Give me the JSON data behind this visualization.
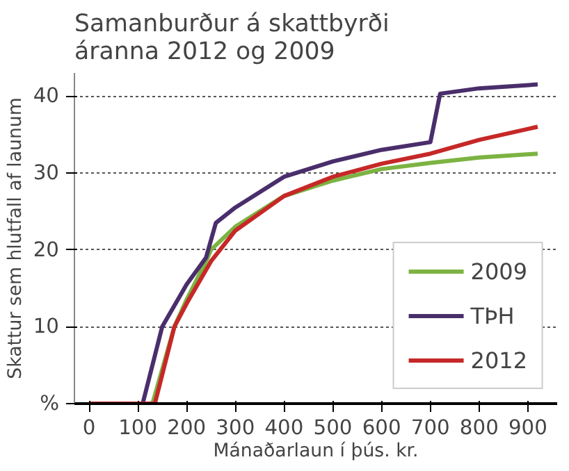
{
  "chart_data": {
    "type": "line",
    "title": "Samanburður á skattbyrði\náranna 2012 og 2009",
    "xlabel": "Mánaðarlaun í þús. kr.",
    "ylabel": "Skattur sem hlutfall af launum",
    "xlim": [
      -30,
      960
    ],
    "ylim": [
      0,
      43
    ],
    "xticks": [
      0,
      100,
      200,
      300,
      400,
      500,
      600,
      700,
      800,
      900
    ],
    "yticks": [
      {
        "value": 0,
        "label": "%"
      },
      10,
      20,
      30,
      40
    ],
    "grid": "y",
    "legend": "bottom right",
    "line_style": "solid",
    "marker": "none",
    "series": [
      {
        "name": "2009",
        "color": "#7cb342",
        "x": [
          0,
          130,
          175,
          200,
          240,
          250,
          300,
          400,
          500,
          600,
          700,
          800,
          920
        ],
        "values": [
          0,
          0,
          10,
          13.5,
          18.5,
          20,
          23,
          27,
          29,
          30.5,
          31.3,
          32,
          32.5
        ]
      },
      {
        "name": "TÞH",
        "color": "#4a2e6b",
        "x": [
          0,
          110,
          150,
          200,
          240,
          260,
          300,
          400,
          500,
          600,
          700,
          720,
          800,
          920
        ],
        "values": [
          0,
          0,
          10,
          15.5,
          19,
          23.5,
          25.5,
          29.5,
          31.5,
          33,
          34,
          40.3,
          41,
          41.5
        ]
      },
      {
        "name": "2012",
        "color": "#c62828",
        "x": [
          0,
          135,
          175,
          200,
          250,
          300,
          400,
          500,
          600,
          700,
          800,
          920
        ],
        "values": [
          0,
          0,
          10,
          13,
          18.5,
          22.5,
          27,
          29.5,
          31.2,
          32.5,
          34.3,
          36
        ]
      }
    ]
  }
}
